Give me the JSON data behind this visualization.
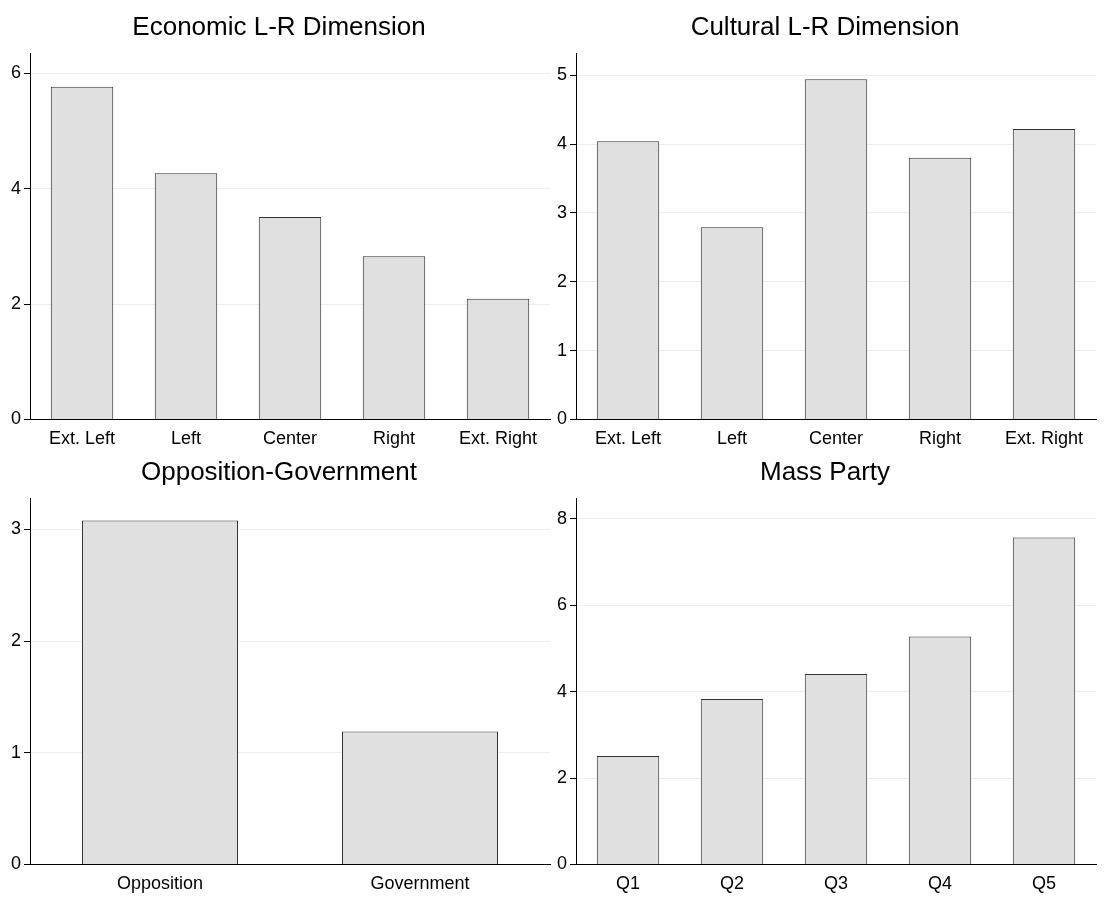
{
  "chart_data": [
    {
      "type": "bar",
      "title": "Economic L-R Dimension",
      "categories": [
        "Ext. Left",
        "Left",
        "Center",
        "Right",
        "Ext. Right"
      ],
      "values": [
        5.77,
        4.27,
        3.51,
        2.83,
        2.09
      ],
      "color": "#e0e0e0",
      "ylim": [
        0,
        6.35
      ],
      "yticks": [
        0,
        2,
        4,
        6
      ],
      "grid": "y"
    },
    {
      "type": "bar",
      "title": "Cultural L-R Dimension",
      "categories": [
        "Ext. Left",
        "Left",
        "Center",
        "Right",
        "Ext. Right"
      ],
      "values": [
        4.04,
        2.79,
        4.94,
        3.8,
        4.22
      ],
      "color": "#e0e0e0",
      "ylim": [
        0,
        5.32
      ],
      "yticks": [
        0,
        1,
        2,
        3,
        4,
        5
      ],
      "grid": "y"
    },
    {
      "type": "bar",
      "title": "Opposition-Government",
      "categories": [
        "Opposition",
        "Government"
      ],
      "values": [
        3.08,
        1.19
      ],
      "color": "#e0e0e0",
      "ylim": [
        0,
        3.28
      ],
      "yticks": [
        0,
        1,
        2,
        3
      ],
      "grid": "y"
    },
    {
      "type": "bar",
      "title": "Mass Party",
      "categories": [
        "Q1",
        "Q2",
        "Q3",
        "Q4",
        "Q5"
      ],
      "values": [
        2.51,
        3.83,
        4.41,
        5.28,
        7.57
      ],
      "color": "#e0e0e0",
      "ylim": [
        0,
        8.48
      ],
      "yticks": [
        0,
        2,
        4,
        6,
        8
      ],
      "grid": "y"
    }
  ]
}
